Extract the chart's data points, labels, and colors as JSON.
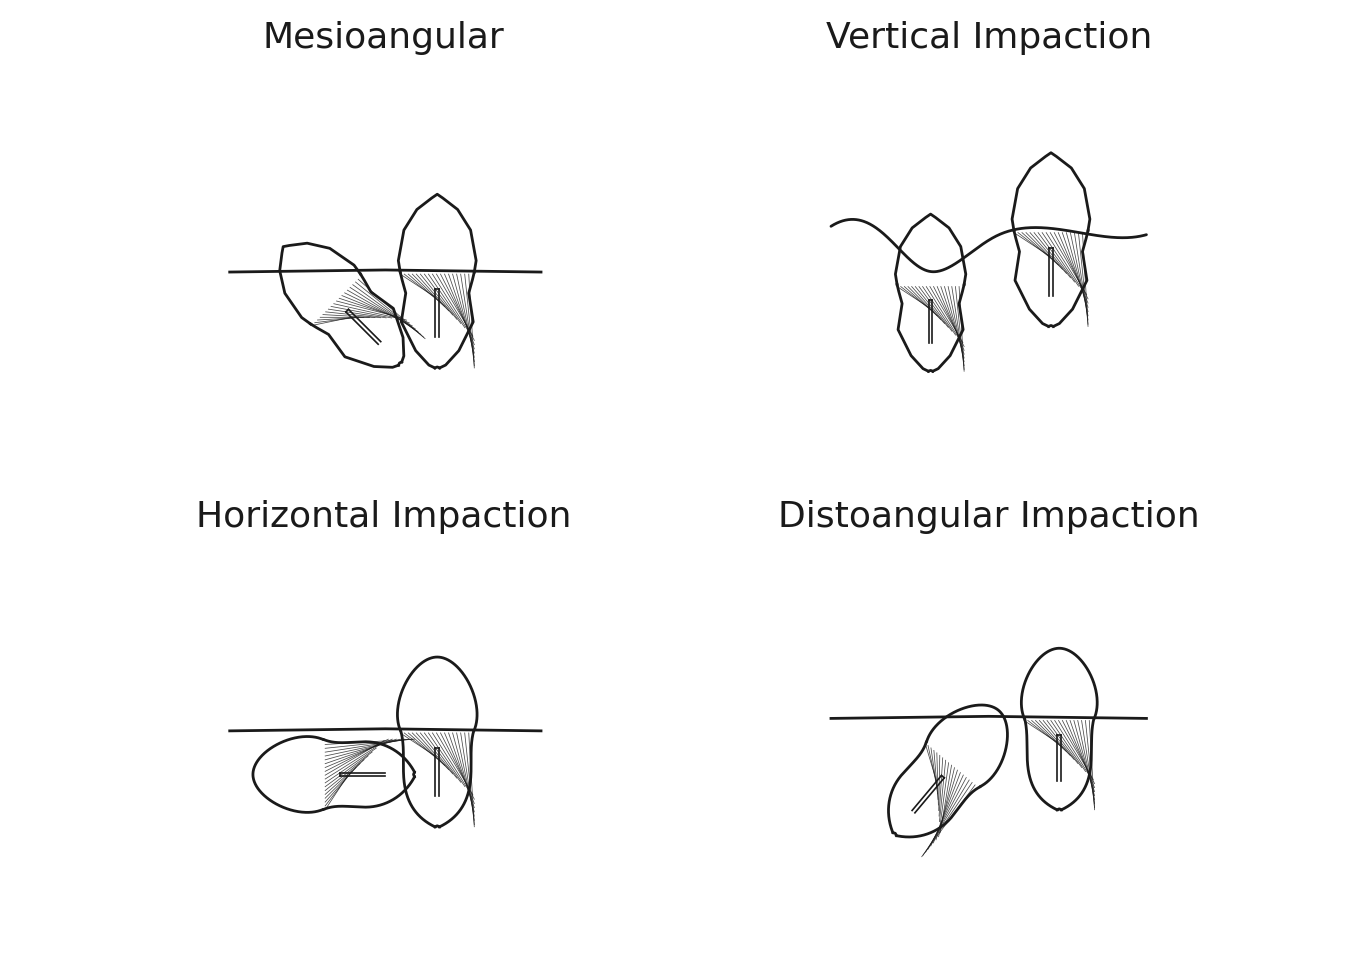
{
  "background_color": "#ffffff",
  "titles": [
    "Mesioangular",
    "Vertical Impaction",
    "Horizontal Impaction",
    "Distoangular Impaction"
  ],
  "title_fontsize": 26,
  "title_color": "#1a1a1a",
  "line_color": "#1a1a1a",
  "line_width": 2.0,
  "font_family": "Comic Sans MS"
}
